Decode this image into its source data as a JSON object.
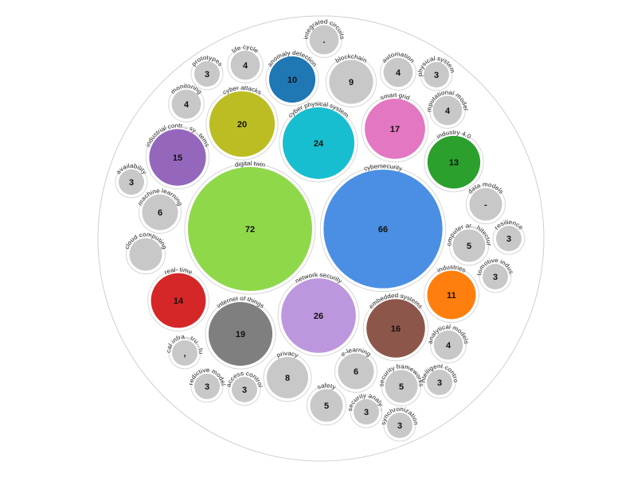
{
  "chart_data": {
    "type": "bubble",
    "title": "",
    "colors": {
      "default": "#c8c8c8",
      "ring": "#d6d6d6",
      "outer": "#cfcfcf"
    },
    "nodes": [
      {
        "label": "digital twin",
        "value": 72,
        "value_text": "72",
        "color": "#8fd84a"
      },
      {
        "label": "cybersecurity",
        "value": 66,
        "value_text": "66",
        "color": "#4a8fe3"
      },
      {
        "label": "network security",
        "value": 26,
        "value_text": "26",
        "color": "#bd97de"
      },
      {
        "label": "cyber physical system",
        "value": 24,
        "value_text": "24",
        "color": "#17becf"
      },
      {
        "label": "cyber attacks",
        "value": 20,
        "value_text": "20",
        "color": "#bcbd22"
      },
      {
        "label": "internet of things",
        "value": 19,
        "value_text": "19",
        "color": "#7f7f7f"
      },
      {
        "label": "smart grid",
        "value": 17,
        "value_text": "17",
        "color": "#e377c2"
      },
      {
        "label": "embedded systems",
        "value": 16,
        "value_text": "16",
        "color": "#8c564b"
      },
      {
        "label": "industrial contr... sy...tems",
        "value": 15,
        "value_text": "15",
        "color": "#9467bd"
      },
      {
        "label": "real- time",
        "value": 14,
        "value_text": "14",
        "color": "#d62728"
      },
      {
        "label": "industry 4.0",
        "value": 13,
        "value_text": "13",
        "color": "#2ca02c"
      },
      {
        "label": "industries",
        "value": 11,
        "value_text": "11",
        "color": "#ff7f0e"
      },
      {
        "label": "anomaly detection",
        "value": 10,
        "value_text": "10",
        "color": "#1f77b4"
      },
      {
        "label": "blockchain",
        "value": 9,
        "value_text": "9",
        "color": null
      },
      {
        "label": "privacy",
        "value": 8,
        "value_text": "8",
        "color": null
      },
      {
        "label": "machine learning",
        "value": 6,
        "value_text": "6",
        "color": null
      },
      {
        "label": "e-learning",
        "value": 6,
        "value_text": "6",
        "color": null
      },
      {
        "label": "computer ar...hitecture",
        "value": 5,
        "value_text": "5",
        "color": null
      },
      {
        "label": "security frameworks",
        "value": 5,
        "value_text": "5",
        "color": null
      },
      {
        "label": "safety",
        "value": 5,
        "value_text": "5",
        "color": null
      },
      {
        "label": "data models",
        "value": 5,
        "value_text": "-",
        "color": null
      },
      {
        "label": "cloud computing",
        "value": 5,
        "value_text": "",
        "color": null
      },
      {
        "label": "monitoring",
        "value": 4,
        "value_text": "4",
        "color": null
      },
      {
        "label": "life cycle",
        "value": 4,
        "value_text": "4",
        "color": null
      },
      {
        "label": "automation",
        "value": 4,
        "value_text": "4",
        "color": null
      },
      {
        "label": "computational modeling",
        "value": 4,
        "value_text": "4",
        "color": null
      },
      {
        "label": "analytical models",
        "value": 4,
        "value_text": "4",
        "color": null
      },
      {
        "label": "integrated circuits",
        "value": 4,
        "value_text": ".",
        "color": null
      },
      {
        "label": "prototypes",
        "value": 3,
        "value_text": "3",
        "color": null
      },
      {
        "label": "physical systems",
        "value": 3,
        "value_text": "3",
        "color": null
      },
      {
        "label": "availability",
        "value": 3,
        "value_text": "3",
        "color": null
      },
      {
        "label": "resilience",
        "value": 3,
        "value_text": "3",
        "color": null
      },
      {
        "label": "automotive indus...y",
        "value": 3,
        "value_text": "3",
        "color": null
      },
      {
        "label": "predictive models",
        "value": 3,
        "value_text": "3",
        "color": null
      },
      {
        "label": "access control",
        "value": 3,
        "value_text": "3",
        "color": null
      },
      {
        "label": "security analy...",
        "value": 3,
        "value_text": "3",
        "color": null
      },
      {
        "label": "synchronization",
        "value": 3,
        "value_text": "3",
        "color": null
      },
      {
        "label": "intelligent control",
        "value": 3,
        "value_text": "3",
        "color": null
      },
      {
        "label": "critical infra...tru...tures",
        "value": 3,
        "value_text": ",",
        "color": null
      }
    ]
  }
}
